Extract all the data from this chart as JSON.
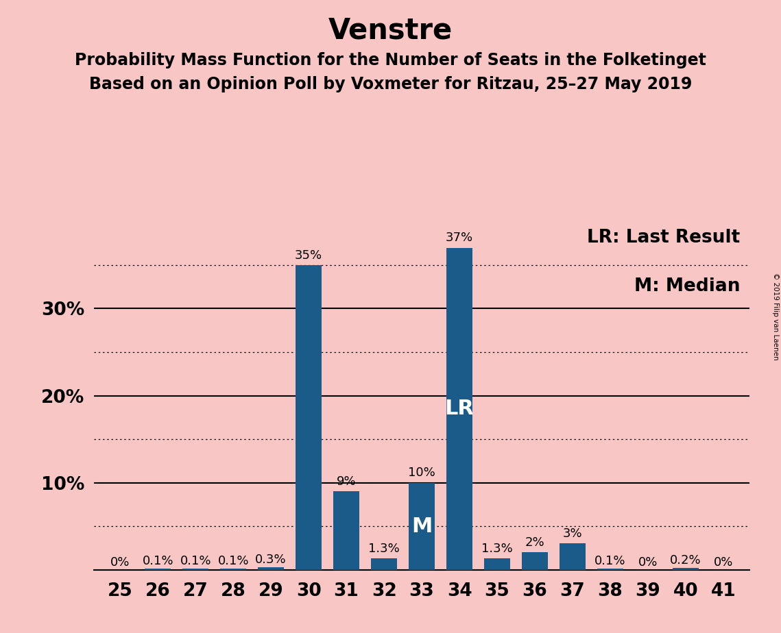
{
  "title": "Venstre",
  "subtitle1": "Probability Mass Function for the Number of Seats in the Folketinget",
  "subtitle2": "Based on an Opinion Poll by Voxmeter for Ritzau, 25–27 May 2019",
  "copyright": "© 2019 Filip van Laenen",
  "seats": [
    25,
    26,
    27,
    28,
    29,
    30,
    31,
    32,
    33,
    34,
    35,
    36,
    37,
    38,
    39,
    40,
    41
  ],
  "probabilities": [
    0.0,
    0.1,
    0.1,
    0.1,
    0.3,
    35.0,
    9.0,
    1.3,
    10.0,
    37.0,
    1.3,
    2.0,
    3.0,
    0.1,
    0.0,
    0.2,
    0.0
  ],
  "labels": [
    "0%",
    "0.1%",
    "0.1%",
    "0.1%",
    "0.3%",
    "35%",
    "9%",
    "1.3%",
    "10%",
    "37%",
    "1.3%",
    "2%",
    "3%",
    "0.1%",
    "0%",
    "0.2%",
    "0%"
  ],
  "bar_color": "#1a5b8a",
  "background_color": "#f9c6c6",
  "last_result_seat": 34,
  "median_seat": 33,
  "legend_lr": "LR: Last Result",
  "legend_m": "M: Median",
  "dotted_yticks": [
    5,
    15,
    25,
    35
  ],
  "solid_yticks": [
    10,
    20,
    30
  ],
  "ylim": [
    0,
    40
  ],
  "title_fontsize": 30,
  "subtitle_fontsize": 17,
  "label_fontsize": 13,
  "tick_fontsize": 19,
  "legend_fontsize": 19,
  "lr_label_fontsize": 22,
  "m_label_fontsize": 22
}
